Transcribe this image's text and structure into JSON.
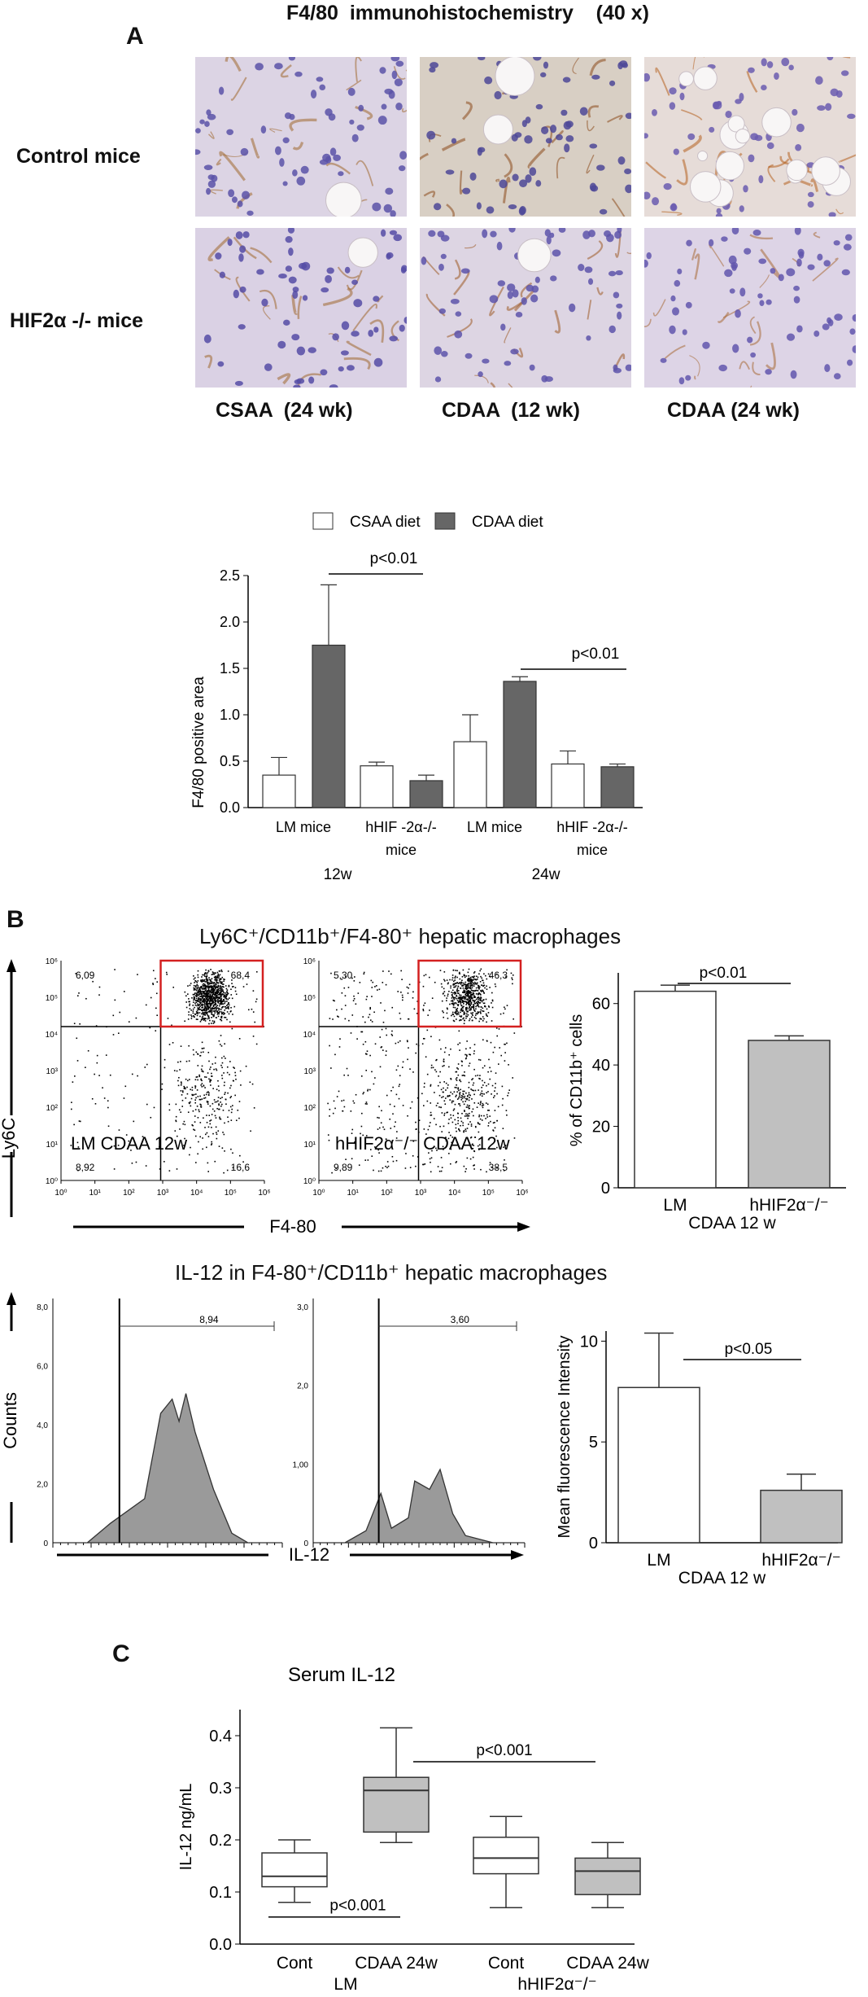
{
  "panel_a": {
    "letter": "A",
    "title": "F4/80  immunohistochemistry    (40 x)",
    "row_labels": [
      "Control mice",
      "HIF2α -/- mice"
    ],
    "col_labels": [
      "CSAA  (24 wk)",
      "CDAA  (12 wk)",
      "CDAA (24 wk)"
    ],
    "images": [
      {
        "bg": "#dcd4e4",
        "stain": "#a0672e",
        "nuclei": "#5b52a8",
        "vacuoles": 1
      },
      {
        "bg": "#d8cfc4",
        "stain": "#8c4b1c",
        "nuclei": "#4e4898",
        "vacuoles": 2
      },
      {
        "bg": "#e6dcd8",
        "stain": "#b5601f",
        "nuclei": "#6a5cb0",
        "vacuoles": 14
      },
      {
        "bg": "#dad1e4",
        "stain": "#a0672e",
        "nuclei": "#554ca6",
        "vacuoles": 1
      },
      {
        "bg": "#ddd5e3",
        "stain": "#9c5a25",
        "nuclei": "#5d54aa",
        "vacuoles": 1
      },
      {
        "bg": "#ddd4e6",
        "stain": "#a86a36",
        "nuclei": "#6156ad",
        "vacuoles": 0
      }
    ]
  },
  "chart_a": {
    "type": "bar",
    "legend": [
      "CSAA diet",
      "CDAA diet"
    ],
    "ylabel": "F4/80 positive area",
    "ylim": [
      0,
      2.5
    ],
    "yticks": [
      "0.0",
      "0.5",
      "1.0",
      "1.5",
      "2.0",
      "2.5"
    ],
    "groups": [
      {
        "label": "LM mice",
        "csaa": 0.35,
        "csaa_err": 0.19,
        "cdaa": 1.75,
        "cdaa_err": 0.65
      },
      {
        "label": "hHIF -2α-/- mice",
        "csaa": 0.45,
        "csaa_err": 0.04,
        "cdaa": 0.29,
        "cdaa_err": 0.06
      },
      {
        "label": "LM mice",
        "csaa": 0.71,
        "csaa_err": 0.29,
        "cdaa": 1.36,
        "cdaa_err": 0.05
      },
      {
        "label": "hHIF -2α-/- mice",
        "csaa": 0.47,
        "csaa_err": 0.14,
        "cdaa": 0.44,
        "cdaa_err": 0.03
      }
    ],
    "time_labels": [
      "12w",
      "24w"
    ],
    "sig": [
      "p<0.01",
      "p<0.01"
    ],
    "colors": {
      "csaa": "#ffffff",
      "cdaa": "#666666"
    }
  },
  "panel_b": {
    "letter": "B",
    "title_scatter": "Ly6C⁺/CD11b⁺/F4-80⁺ hepatic macrophages",
    "scatter_ylabel": "Ly6C",
    "scatter_xlabel": "F4-80",
    "scatter_ticks": [
      "10⁰",
      "10¹",
      "10²",
      "10³",
      "10⁴",
      "10⁵",
      "10⁶"
    ],
    "plot1": {
      "label": "LM CDAA 12w",
      "q_ul": "6,09",
      "q_ur": "68,4",
      "q_ll": "8,92",
      "q_lr": "16,6"
    },
    "plot2": {
      "label": "hHIF2α⁻/⁻ CDAA 12w",
      "q_ul": "5,30",
      "q_ur": "46,3",
      "q_ll": "9,89",
      "q_lr": "38,5"
    },
    "title_hist": "IL-12 in F4-80⁺/CD11b⁺ hepatic macrophages",
    "hist_ylabel": "Counts",
    "hist_xlabel": "IL-12",
    "hist1": {
      "gate": "8,94",
      "yticks": [
        "0",
        "2,0",
        "4,0",
        "6,0",
        "8,0"
      ]
    },
    "hist2": {
      "gate": "3,60",
      "yticks": [
        "0",
        "1,00",
        "2,0",
        "3,0"
      ]
    }
  },
  "chart_b1": {
    "type": "bar",
    "categories": [
      "LM",
      "hHIF2α⁻/⁻"
    ],
    "values": [
      64,
      48
    ],
    "errors": [
      2,
      1.5
    ],
    "ylabel": "% of CD11b⁺ cells",
    "ylim": [
      0,
      70
    ],
    "yticks": [
      "0",
      "20",
      "40",
      "60"
    ],
    "xlabel": "CDAA 12 w",
    "sig": "p<0.01",
    "colors": [
      "#ffffff",
      "#c0c0c0"
    ]
  },
  "chart_b2": {
    "type": "bar",
    "categories": [
      "LM",
      "hHIF2α⁻/⁻"
    ],
    "values": [
      7.7,
      2.6
    ],
    "errors": [
      2.7,
      0.8
    ],
    "ylabel": "Mean fluorescence Intensity",
    "ylim": [
      0,
      10.5
    ],
    "yticks": [
      "0",
      "5",
      "10"
    ],
    "xlabel": "CDAA 12 w",
    "sig": "p<0.05",
    "colors": [
      "#ffffff",
      "#c0c0c0"
    ]
  },
  "chart_c": {
    "letter": "C",
    "type": "box",
    "title": "Serum IL-12",
    "ylabel": "IL-12 ng/mL",
    "ylim": [
      0,
      0.45
    ],
    "yticks": [
      "0.0",
      "0.1",
      "0.2",
      "0.3",
      "0.4"
    ],
    "boxes": [
      {
        "label": "Cont",
        "min": 0.08,
        "q1": 0.11,
        "median": 0.13,
        "q3": 0.175,
        "max": 0.2,
        "color": "#ffffff"
      },
      {
        "label": "CDAA 24w",
        "min": 0.195,
        "q1": 0.215,
        "median": 0.295,
        "q3": 0.32,
        "max": 0.415,
        "color": "#c0c0c0"
      },
      {
        "label": "Cont",
        "min": 0.07,
        "q1": 0.135,
        "median": 0.165,
        "q3": 0.205,
        "max": 0.245,
        "color": "#ffffff"
      },
      {
        "label": "CDAA 24w",
        "min": 0.07,
        "q1": 0.095,
        "median": 0.14,
        "q3": 0.165,
        "max": 0.195,
        "color": "#c0c0c0"
      }
    ],
    "group_labels": [
      "LM",
      "hHIF2α⁻/⁻"
    ],
    "sig": [
      "p<0.001",
      "p<0.001"
    ]
  }
}
